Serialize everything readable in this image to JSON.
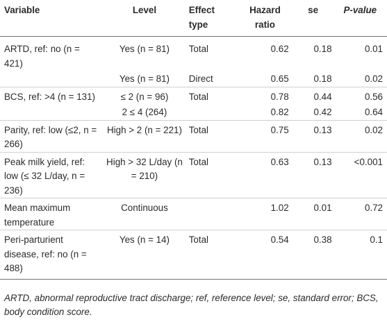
{
  "table": {
    "headers": {
      "variable": "Variable",
      "level": "Level",
      "effect_type": "Effect type",
      "hazard_ratio": "Hazard ratio",
      "se": "se",
      "p_value": "P-value"
    },
    "rows": [
      {
        "variable": "ARTD, ref: no (n = 421)",
        "level": "Yes (n = 81)",
        "effect": "Total",
        "hr": "0.62",
        "se": "0.18",
        "p": "0.01"
      },
      {
        "variable": "",
        "level": "Yes (n = 81)",
        "effect": "Direct",
        "hr": "0.65",
        "se": "0.18",
        "p": "0.02"
      },
      {
        "variable": "BCS, ref: >4 (n = 131)",
        "level": "≤ 2 (n = 96)",
        "effect": "Total",
        "hr": "0.78",
        "se": "0.44",
        "p": "0.56"
      },
      {
        "variable": "",
        "level": "2 ≤ 4 (264)",
        "effect": "",
        "hr": "0.82",
        "se": "0.42",
        "p": "0.64"
      },
      {
        "variable": "Parity, ref: low (≤2, n = 266)",
        "level": "High > 2 (n = 221)",
        "effect": "Total",
        "hr": "0.75",
        "se": "0.13",
        "p": "0.02"
      },
      {
        "variable": "Peak milk yield, ref: low (≤ 32 L/day, n = 236)",
        "level": "High > 32 L/day (n = 210)",
        "effect": "Total",
        "hr": "0.63",
        "se": "0.13",
        "p": "<0.001"
      },
      {
        "variable": "Mean maximum temperature",
        "level": "Continuous",
        "effect": "",
        "hr": "1.02",
        "se": "0.01",
        "p": "0.72"
      },
      {
        "variable": "Peri-parturient disease, ref: no (n = 488)",
        "level": "Yes (n = 14)",
        "effect": "Total",
        "hr": "0.54",
        "se": "0.38",
        "p": "0.1"
      }
    ]
  },
  "footnote": "ARTD, abnormal reproductive tract discharge; ref, reference level; se, standard error; BCS, body condition score."
}
